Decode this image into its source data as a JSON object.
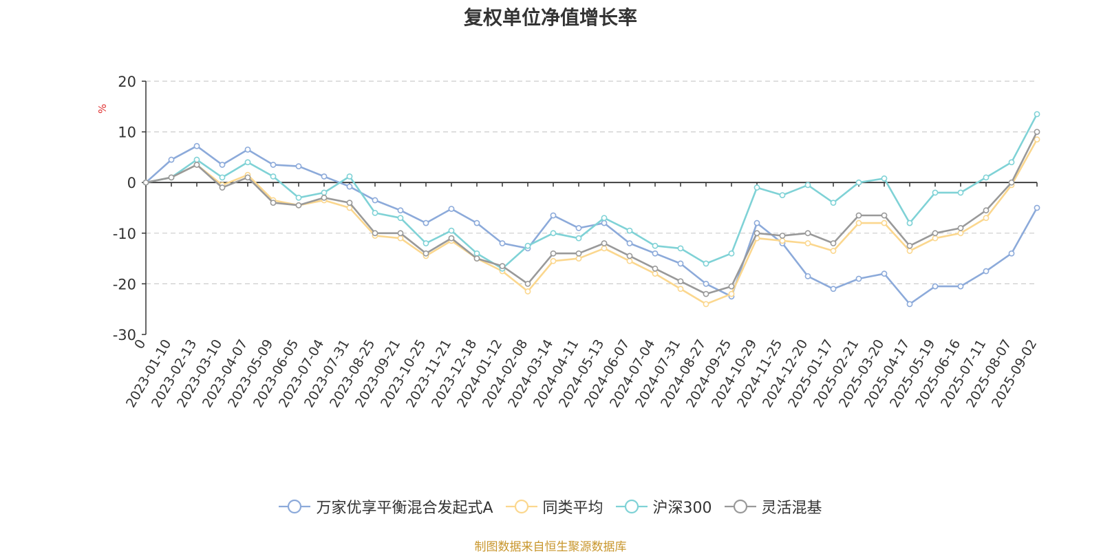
{
  "chart_data": {
    "type": "line",
    "title": "复权单位净值增长率",
    "ylabel": "%",
    "ylim": [
      -30,
      20
    ],
    "yticks": [
      20,
      10,
      0,
      -10,
      -20,
      -30
    ],
    "y_tick_labels": [
      "20",
      "10",
      "0",
      "-10",
      "-20",
      "-30"
    ],
    "grid": true,
    "legend_position": "bottom",
    "x_tick_labels": [
      "0",
      "2023-01-10",
      "2023-02-13",
      "2023-03-10",
      "2023-04-07",
      "2023-05-09",
      "2023-06-05",
      "2023-07-04",
      "2023-07-31",
      "2023-08-25",
      "2023-09-21",
      "2023-10-25",
      "2023-11-21",
      "2023-12-18",
      "2024-01-12",
      "2024-02-08",
      "2024-03-14",
      "2024-04-11",
      "2024-05-13",
      "2024-06-07",
      "2024-07-04",
      "2024-07-31",
      "2024-08-27",
      "2024-09-25",
      "2024-10-29",
      "2024-11-25",
      "2024-12-20",
      "2025-01-17",
      "2025-02-21",
      "2025-03-20",
      "2025-04-17",
      "2025-05-19",
      "2025-06-16",
      "2025-07-11",
      "2025-08-07",
      "2025-09-02"
    ],
    "x": [
      "0",
      "2023-01-10",
      "2023-02-13",
      "2023-03-10",
      "2023-04-07",
      "2023-05-09",
      "2023-06-05",
      "2023-07-04",
      "2023-07-31",
      "2023-08-25",
      "2023-09-21",
      "2023-10-25",
      "2023-11-21",
      "2023-12-18",
      "2024-01-12",
      "2024-02-08",
      "2024-03-14",
      "2024-04-11",
      "2024-05-13",
      "2024-06-07",
      "2024-07-04",
      "2024-07-31",
      "2024-08-27",
      "2024-09-25",
      "2024-10-29",
      "2024-11-25",
      "2024-12-20",
      "2025-01-17",
      "2025-02-21",
      "2025-03-20",
      "2025-04-17",
      "2025-05-19",
      "2025-06-16",
      "2025-07-11",
      "2025-08-07",
      "2025-09-02"
    ],
    "series": [
      {
        "name": "万家优享平衡混合发起式A",
        "color": "#8caada",
        "values": [
          0,
          4.5,
          7.2,
          3.5,
          6.5,
          3.5,
          3.2,
          1.2,
          -0.8,
          -3.5,
          -5.5,
          -8,
          -5.2,
          -8,
          -12,
          -13,
          -6.5,
          -9,
          -8,
          -12,
          -14,
          -16,
          -20,
          -22.5,
          -8,
          -12,
          -18.5,
          -21,
          -19,
          -18,
          -24,
          -20.5,
          -20.5,
          -17.5,
          -14,
          -5
        ]
      },
      {
        "name": "同类平均",
        "color": "#fbd78e",
        "values": [
          0,
          1,
          3.5,
          -0.5,
          1.5,
          -3.5,
          -4.5,
          -3.5,
          -5,
          -10.5,
          -11,
          -14.5,
          -11.5,
          -15,
          -17.5,
          -21.5,
          -15.5,
          -15,
          -13,
          -15.5,
          -18,
          -21,
          -24,
          -22,
          -11,
          -11.5,
          -12,
          -13.5,
          -8,
          -8,
          -13.5,
          -11,
          -10,
          -7,
          -0.5,
          8.5
        ]
      },
      {
        "name": "沪深300",
        "color": "#7fd2d6",
        "values": [
          0,
          1,
          4.5,
          1,
          4,
          1.2,
          -3,
          -2,
          1.2,
          -6,
          -7,
          -12,
          -9.5,
          -14,
          -17,
          -12.5,
          -10,
          -11,
          -7,
          -9.5,
          -12.5,
          -13,
          -16,
          -14,
          -1,
          -2.5,
          -0.5,
          -4,
          0,
          0.8,
          -8,
          -2,
          -2,
          1,
          4,
          13.5
        ]
      },
      {
        "name": "灵活混基",
        "color": "#999999",
        "values": [
          0,
          1,
          3.5,
          -1,
          1,
          -4,
          -4.5,
          -3,
          -4,
          -10,
          -10,
          -14,
          -11,
          -15,
          -16.5,
          -20,
          -14,
          -14,
          -12,
          -14.5,
          -17,
          -19.5,
          -22,
          -20.5,
          -10,
          -10.5,
          -10,
          -12,
          -6.5,
          -6.5,
          -12.5,
          -10,
          -9,
          -5.5,
          0,
          10
        ]
      }
    ]
  },
  "source_note": "制图数据来自恒生聚源数据库"
}
